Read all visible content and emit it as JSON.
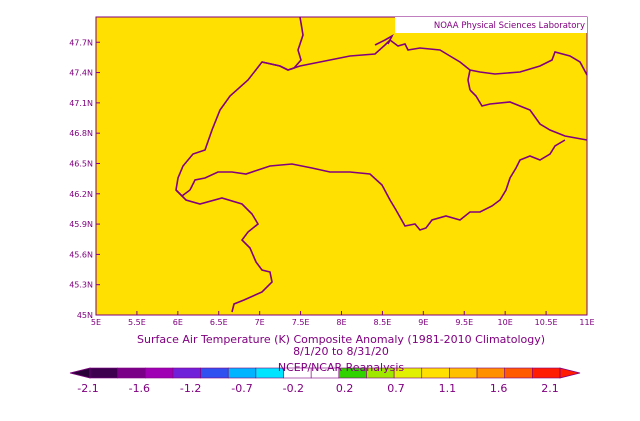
{
  "credit": "NOAA Physical Sciences Laboratory",
  "title_line1": "Surface Air Temperature (K) Composite Anomaly (1981-2010 Climatology)",
  "title_line2": "8/1/20  to 8/31/20",
  "source": "NCEP/NCAR Reanalysis",
  "colors": {
    "fill": "#ffe000",
    "frame": "#800080",
    "border": "#800080"
  },
  "map": {
    "lon_range": [
      5,
      11
    ],
    "lat_range": [
      45,
      47.95
    ],
    "x_ticks": [
      "5E",
      "5.5E",
      "6E",
      "6.5E",
      "7E",
      "7.5E",
      "8E",
      "8.5E",
      "9E",
      "9.5E",
      "10E",
      "10.5E",
      "11E"
    ],
    "y_ticks": [
      "45N",
      "45.3N",
      "45.6N",
      "45.9N",
      "46.2N",
      "46.5N",
      "46.8N",
      "47.1N",
      "47.4N",
      "47.7N"
    ]
  },
  "colorbar": {
    "labels": [
      "-2.1",
      "-1.6",
      "-1.2",
      "-0.7",
      "-0.2",
      "0.2",
      "0.7",
      "1.1",
      "1.6",
      "2.1"
    ],
    "colors": [
      "#3c004f",
      "#7a0088",
      "#a000b4",
      "#7020d8",
      "#3050f0",
      "#00b4ff",
      "#00e4ff",
      "#ffffff",
      "#ffffff",
      "#30d200",
      "#a0e800",
      "#e0f000",
      "#ffe000",
      "#ffc000",
      "#ff9000",
      "#ff5a00",
      "#ff1c00"
    ]
  }
}
